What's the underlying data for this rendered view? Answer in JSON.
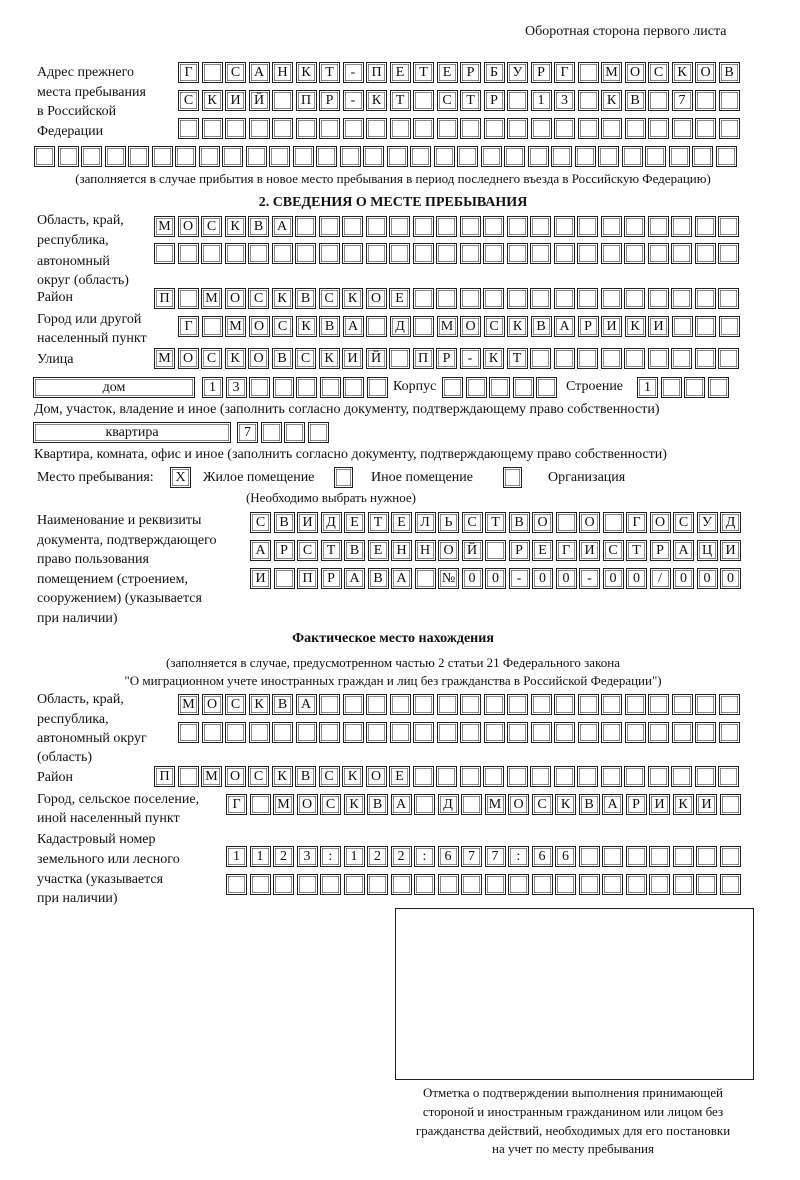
{
  "header": "Оборотная сторона первого листа",
  "prev_address": {
    "label": [
      "Адрес прежнего",
      "места пребывания",
      "в Российской",
      "Федерации"
    ],
    "rows": [
      "Г САНКТ-ПЕТЕРБУРГ МОСКОВ",
      "СКИЙ ПР-КТ СТР 13 КВ 7  ",
      "",
      ""
    ],
    "note": "(заполняется в случае прибытия в новое место пребывания в период последнего въезда в Российскую Федерацию)"
  },
  "section2": {
    "title": "2. СВЕДЕНИЯ О МЕСТЕ ПРЕБЫВАНИЯ",
    "region_label": [
      "Область, край,",
      "республика,",
      "автономный",
      "округ (область)"
    ],
    "region_rows": [
      "МОСКВА",
      ""
    ],
    "district_label": "Район",
    "district": "П МОСКВСКОЕ",
    "city_label": [
      "Город или другой",
      "населенный пункт"
    ],
    "city": "Г МОСКВА Д МОСКВАРИКИ",
    "street_label": "Улица",
    "street": "МОСКОВСКИЙ ПР-КТ",
    "house_type": "дом",
    "house": "13",
    "korpus_label": "Корпус",
    "korpus": "",
    "building_label": "Строение",
    "building": "1",
    "house_note": "Дом, участок, владение и иное (заполнить согласно документу, подтверждающему право собственности)",
    "apt_type": "квартира",
    "apt": "7",
    "apt_note": "Квартира, комната, офис и иное (заполнить согласно документу, подтверждающему право собственности)",
    "stay_label": "Место пребывания:",
    "options": [
      {
        "label": "Жилое помещение",
        "mark": "X"
      },
      {
        "label": "Иное помещение",
        "mark": ""
      },
      {
        "label": "Организация",
        "mark": ""
      }
    ],
    "choose_note": "(Необходимо выбрать нужное)",
    "doc_label": [
      "Наименование и реквизиты",
      "документа, подтверждающего",
      "право пользования",
      "помещением (строением,",
      "сооружением) (указывается",
      "при наличии)"
    ],
    "doc_rows": [
      "СВИДЕТЕЛЬСТВО О ГОСУД",
      "АРСТВЕННОЙ РЕГИСТРАЦИ",
      "И ПРАВА №00-00-00/000"
    ]
  },
  "actual": {
    "title": "Фактическое место нахождения",
    "note": [
      "(заполняется в случае, предусмотренном частью 2 статьи 21 Федерального закона",
      "\"О миграционном учете иностранных граждан и лиц без гражданства в Российской Федерации\")"
    ],
    "region_label": [
      "Область, край,",
      "республика,",
      "автономный округ",
      "(область)"
    ],
    "region_rows": [
      "МОСКВА",
      ""
    ],
    "district_label": "Район",
    "district": "П МОСКВСКОЕ",
    "city_label": [
      "Город, сельское поселение,",
      "иной населенный пункт"
    ],
    "city": "Г МОСКВА Д МОСКВАРИКИ",
    "cadastre_label": [
      "Кадастровый номер",
      "земельного или лесного",
      "участка (указывается",
      "при наличии)"
    ],
    "cadastre_rows": [
      "1123:122:677:66",
      ""
    ]
  },
  "stamp_caption": [
    "Отметка о подтверждении выполнения принимающей",
    "стороной и иностранным гражданином или лицом без",
    "гражданства действий, необходимых для его постановки",
    "на учет по месту пребывания"
  ]
}
